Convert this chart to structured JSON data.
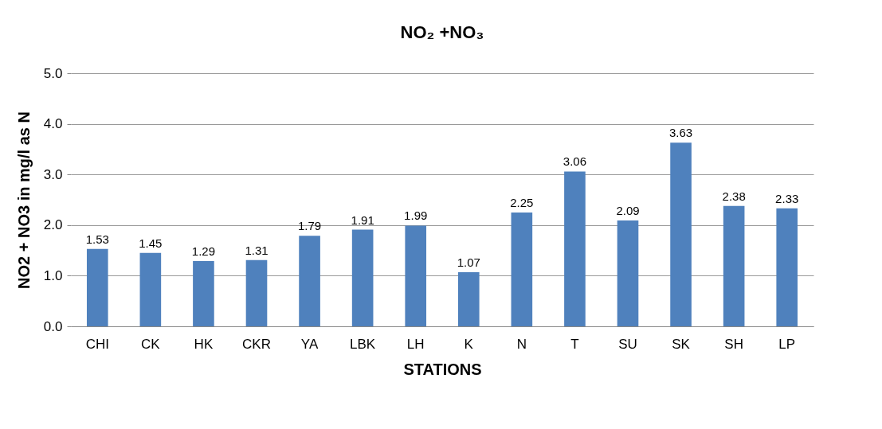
{
  "chart_data": {
    "type": "bar",
    "title": "NO₂ +NO₃",
    "xlabel": "STATIONS",
    "ylabel": "NO2 + NO3 in mg/l  as N",
    "categories": [
      "CHI",
      "CK",
      "HK",
      "CKR",
      "YA",
      "LBK",
      "LH",
      "K",
      "N",
      "T",
      "SU",
      "SK",
      "SH",
      "LP"
    ],
    "values": [
      1.53,
      1.45,
      1.29,
      1.31,
      1.79,
      1.91,
      1.99,
      1.07,
      2.25,
      3.06,
      2.09,
      3.63,
      2.38,
      2.33
    ],
    "color": "#4f81bd",
    "ylim": [
      0,
      5
    ],
    "yticks": [
      {
        "value": 0,
        "label": "0.0"
      },
      {
        "value": 1,
        "label": "1.0"
      },
      {
        "value": 2,
        "label": "2.0"
      },
      {
        "value": 3,
        "label": "3.0"
      },
      {
        "value": 4,
        "label": "4.0"
      },
      {
        "value": 5,
        "label": "5.0"
      }
    ],
    "grid": "y",
    "data_labels": true
  }
}
